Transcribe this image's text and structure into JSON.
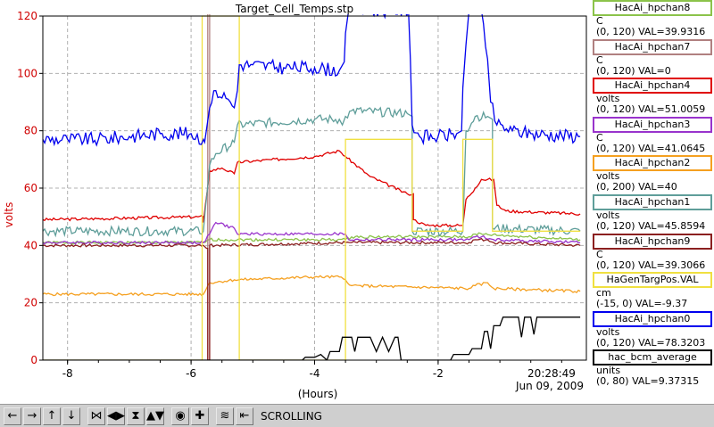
{
  "chart_data": {
    "type": "line",
    "title": "Target_Cell_Temps.stp",
    "xlabel": "(Hours)",
    "ylabel": "volts",
    "xlim": [
      -8.4,
      0.4
    ],
    "ylim": [
      0,
      120
    ],
    "x_ticks": [
      -8,
      -6,
      -4,
      -2
    ],
    "y_ticks": [
      0,
      20,
      40,
      60,
      80,
      100,
      120
    ],
    "grid": true,
    "timestamp": "20:28:49",
    "date": "Jun 09, 2009",
    "series": [
      {
        "name": "HacAi_hpchan8",
        "color": "#8bc34a",
        "unit": "C",
        "range": "(0, 120)",
        "val": "VAL=39.9316",
        "points": [
          [
            -8.4,
            41
          ],
          [
            -5.8,
            41
          ],
          [
            -5.7,
            42
          ],
          [
            -3.5,
            42
          ],
          [
            -3.4,
            43
          ],
          [
            -1.5,
            43
          ],
          [
            -1.4,
            44
          ],
          [
            0.3,
            42
          ]
        ]
      },
      {
        "name": "HacAi_hpchan7",
        "color": "#b08080",
        "unit": "C",
        "range": "(0, 120)",
        "val": "VAL=0",
        "points": [
          [
            -5.73,
            0
          ],
          [
            -5.73,
            130
          ],
          [
            -5.7,
            130
          ],
          [
            -5.7,
            0
          ]
        ]
      },
      {
        "name": "HacAi_hpchan4",
        "color": "#e00000",
        "unit": "volts",
        "range": "(0, 120)",
        "val": "VAL=51.0059",
        "points": [
          [
            -8.4,
            49
          ],
          [
            -5.8,
            50
          ],
          [
            -5.8,
            48
          ],
          [
            -5.7,
            66
          ],
          [
            -5.5,
            67
          ],
          [
            -5.3,
            65
          ],
          [
            -5.25,
            69
          ],
          [
            -4.0,
            71
          ],
          [
            -3.6,
            73
          ],
          [
            -3.5,
            71
          ],
          [
            -3.1,
            64
          ],
          [
            -2.5,
            58
          ],
          [
            -2.4,
            58
          ],
          [
            -2.4,
            49
          ],
          [
            -2.2,
            47
          ],
          [
            -1.6,
            47
          ],
          [
            -1.55,
            56
          ],
          [
            -1.4,
            60
          ],
          [
            -1.3,
            63
          ],
          [
            -1.1,
            63
          ],
          [
            -1.05,
            54
          ],
          [
            -0.9,
            52
          ],
          [
            0.3,
            51
          ]
        ]
      },
      {
        "name": "HacAi_hpchan3",
        "color": "#9933cc",
        "unit": "C",
        "range": "(0, 120)",
        "val": "VAL=41.0645",
        "points": [
          [
            -8.4,
            41
          ],
          [
            -5.8,
            41
          ],
          [
            -5.7,
            44
          ],
          [
            -5.6,
            48
          ],
          [
            -5.3,
            46
          ],
          [
            -5.25,
            44
          ],
          [
            -3.5,
            44
          ],
          [
            -3.45,
            42
          ],
          [
            -1.5,
            42
          ],
          [
            -1.4,
            43
          ],
          [
            -1.3,
            43
          ],
          [
            -1.1,
            42
          ],
          [
            0.3,
            41
          ]
        ]
      },
      {
        "name": "HacAi_hpchan2",
        "color": "#f5a020",
        "unit": "volts",
        "range": "(0, 200)",
        "val": "VAL=40",
        "points": [
          [
            -8.4,
            23
          ],
          [
            -5.8,
            23
          ],
          [
            -5.7,
            27
          ],
          [
            -5.3,
            28
          ],
          [
            -4.0,
            29
          ],
          [
            -3.6,
            29
          ],
          [
            -3.5,
            28
          ],
          [
            -3.4,
            26
          ],
          [
            -1.5,
            25
          ],
          [
            -1.4,
            26
          ],
          [
            -1.2,
            27
          ],
          [
            -1.1,
            25
          ],
          [
            0.3,
            24
          ]
        ]
      },
      {
        "name": "HacAi_hpchan1",
        "color": "#5f9e9a",
        "unit": "volts",
        "range": "(0, 120)",
        "val": "VAL=45.8594",
        "points": [
          [
            -8.4,
            45
          ],
          [
            -5.8,
            45
          ],
          [
            -5.7,
            68
          ],
          [
            -5.6,
            72
          ],
          [
            -5.3,
            76
          ],
          [
            -5.25,
            82
          ],
          [
            -4.0,
            84
          ],
          [
            -3.6,
            84
          ],
          [
            -3.55,
            82
          ],
          [
            -3.5,
            85
          ],
          [
            -3.4,
            87
          ],
          [
            -2.5,
            86
          ],
          [
            -2.42,
            85
          ],
          [
            -2.42,
            45
          ],
          [
            -1.6,
            45
          ],
          [
            -1.55,
            80
          ],
          [
            -1.4,
            85
          ],
          [
            -1.2,
            85
          ],
          [
            -1.12,
            84
          ],
          [
            -1.12,
            46
          ],
          [
            0.3,
            45
          ]
        ]
      },
      {
        "name": "HacAi_hpchan9",
        "color": "#8b2020",
        "unit": "C",
        "range": "(0, 120)",
        "val": "VAL=39.3066",
        "points": [
          [
            -8.4,
            40
          ],
          [
            -5.8,
            40
          ],
          [
            -5.75,
            39
          ],
          [
            -5.73,
            39
          ],
          [
            -5.73,
            0
          ],
          [
            -5.7,
            0
          ],
          [
            -5.7,
            40
          ],
          [
            -3.5,
            41
          ],
          [
            -3.4,
            41
          ],
          [
            -1.5,
            41
          ],
          [
            -1.4,
            42
          ],
          [
            -1.2,
            42
          ],
          [
            -1.1,
            41
          ],
          [
            0.3,
            40
          ]
        ]
      },
      {
        "name": "HaGenTargPos.VAL",
        "color": "#f0e040",
        "unit": "cm",
        "range": "(-15, 0)",
        "val": "VAL=-9.37",
        "points": [
          [
            -8.4,
            0
          ],
          [
            -5.82,
            0
          ],
          [
            -5.82,
            120
          ],
          [
            -5.22,
            120
          ],
          [
            -5.22,
            0
          ],
          [
            -3.5,
            0
          ],
          [
            -3.5,
            77
          ],
          [
            -2.42,
            77
          ],
          [
            -2.42,
            45
          ],
          [
            -1.6,
            45
          ],
          [
            -1.6,
            77
          ],
          [
            -1.12,
            77
          ],
          [
            -1.12,
            45
          ],
          [
            0.3,
            45
          ]
        ]
      },
      {
        "name": "HacAi_hpchan0",
        "color": "#0000ee",
        "unit": "volts",
        "range": "(0, 120)",
        "val": "VAL=78.3203",
        "points": [
          [
            -8.4,
            77
          ],
          [
            -8.0,
            77
          ],
          [
            -7.5,
            77
          ],
          [
            -7.0,
            78
          ],
          [
            -6.5,
            79
          ],
          [
            -6.0,
            79
          ],
          [
            -5.8,
            77
          ],
          [
            -5.78,
            76
          ],
          [
            -5.7,
            88
          ],
          [
            -5.6,
            94
          ],
          [
            -5.4,
            91
          ],
          [
            -5.3,
            88
          ],
          [
            -5.25,
            94
          ],
          [
            -5.22,
            103
          ],
          [
            -5.0,
            103
          ],
          [
            -4.5,
            102
          ],
          [
            -4.0,
            102
          ],
          [
            -3.6,
            101
          ],
          [
            -3.52,
            104
          ],
          [
            -3.5,
            114
          ],
          [
            -3.45,
            122
          ],
          [
            -2.48,
            122
          ],
          [
            -2.45,
            105
          ],
          [
            -2.42,
            82
          ],
          [
            -2.3,
            78
          ],
          [
            -2.0,
            78
          ],
          [
            -1.7,
            79
          ],
          [
            -1.62,
            80
          ],
          [
            -1.6,
            95
          ],
          [
            -1.55,
            110
          ],
          [
            -1.5,
            122
          ],
          [
            -1.35,
            122
          ],
          [
            -1.3,
            122
          ],
          [
            -1.2,
            105
          ],
          [
            -1.15,
            90
          ],
          [
            -1.05,
            82
          ],
          [
            -0.8,
            80
          ],
          [
            -0.5,
            79
          ],
          [
            0.3,
            78
          ]
        ]
      },
      {
        "name": "hac_bcm_average",
        "color": "#000000",
        "unit": "units",
        "range": "(0, 80)",
        "val": "VAL=9.37315",
        "points": [
          [
            -8.4,
            0
          ],
          [
            -4.2,
            0
          ],
          [
            -4.15,
            1
          ],
          [
            -4.0,
            1
          ],
          [
            -3.9,
            2
          ],
          [
            -3.8,
            0
          ],
          [
            -3.75,
            3
          ],
          [
            -3.6,
            3
          ],
          [
            -3.55,
            8
          ],
          [
            -3.4,
            8
          ],
          [
            -3.35,
            3
          ],
          [
            -3.3,
            8
          ],
          [
            -3.1,
            8
          ],
          [
            -3.0,
            3
          ],
          [
            -2.9,
            8
          ],
          [
            -2.8,
            3
          ],
          [
            -2.7,
            8
          ],
          [
            -2.65,
            8
          ],
          [
            -2.6,
            0
          ],
          [
            -1.8,
            0
          ],
          [
            -1.75,
            2
          ],
          [
            -1.5,
            2
          ],
          [
            -1.45,
            4
          ],
          [
            -1.3,
            4
          ],
          [
            -1.25,
            10
          ],
          [
            -1.2,
            10
          ],
          [
            -1.15,
            4
          ],
          [
            -1.1,
            12
          ],
          [
            -1.0,
            12
          ],
          [
            -0.95,
            15
          ],
          [
            -0.7,
            15
          ],
          [
            -0.65,
            8
          ],
          [
            -0.6,
            15
          ],
          [
            -0.5,
            15
          ],
          [
            -0.45,
            9
          ],
          [
            -0.4,
            15
          ],
          [
            0.3,
            15
          ]
        ]
      }
    ]
  },
  "toolbar": {
    "buttons": [
      {
        "label": "←",
        "icon": "pan-left-icon"
      },
      {
        "label": "→",
        "icon": "pan-right-icon"
      },
      {
        "label": "↑",
        "icon": "pan-up-icon"
      },
      {
        "label": "↓",
        "icon": "pan-down-icon"
      },
      {
        "label": "⋈",
        "icon": "zoom-in-x-icon"
      },
      {
        "label": "◀▶",
        "icon": "zoom-out-x-icon"
      },
      {
        "label": "⧗",
        "icon": "zoom-in-y-icon"
      },
      {
        "label": "▲▼",
        "icon": "zoom-out-y-icon"
      },
      {
        "label": "◉",
        "icon": "autoscale-icon"
      },
      {
        "label": "✚",
        "icon": "add-channel-icon"
      },
      {
        "label": "≋",
        "icon": "config-icon"
      },
      {
        "label": "⇤",
        "icon": "scroll-end-icon"
      }
    ],
    "status": "SCROLLING"
  }
}
